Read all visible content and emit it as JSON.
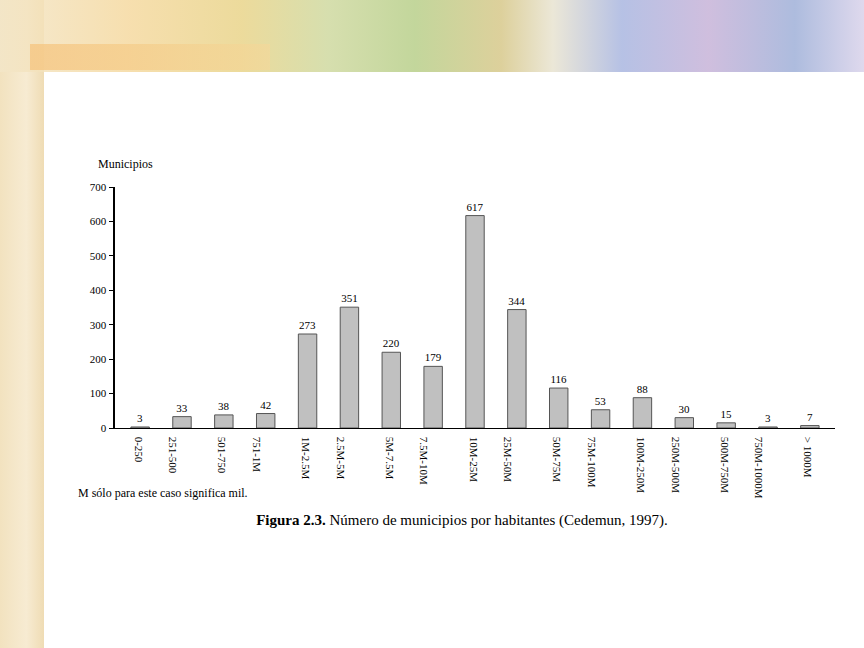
{
  "chart_data": {
    "type": "bar",
    "y_label": "Municipios",
    "categories": [
      "0-250",
      "251-500",
      "501-750",
      "751-1M",
      "1M-2.5M",
      "2.5M-5M",
      "5M-7.5M",
      "7.5M-10M",
      "10M-25M",
      "25M-50M",
      "50M-75M",
      "75M-100M",
      "100M-250M",
      "250M-500M",
      "500M-750M",
      "750M-1000M",
      "> 1000M"
    ],
    "values": [
      3,
      33,
      38,
      42,
      273,
      351,
      220,
      179,
      617,
      344,
      116,
      53,
      88,
      30,
      15,
      3,
      7
    ],
    "color": "#c0c0c0",
    "ylim": [
      0,
      700
    ],
    "yticks": [
      0,
      100,
      200,
      300,
      400,
      500,
      600,
      700
    ],
    "grid": false,
    "data_labels": true,
    "note": "M sólo para este caso significa mil.",
    "caption_label": "Figura 2.3.",
    "caption": "Número de municipios por habitantes (Cedemun, 1997)."
  }
}
